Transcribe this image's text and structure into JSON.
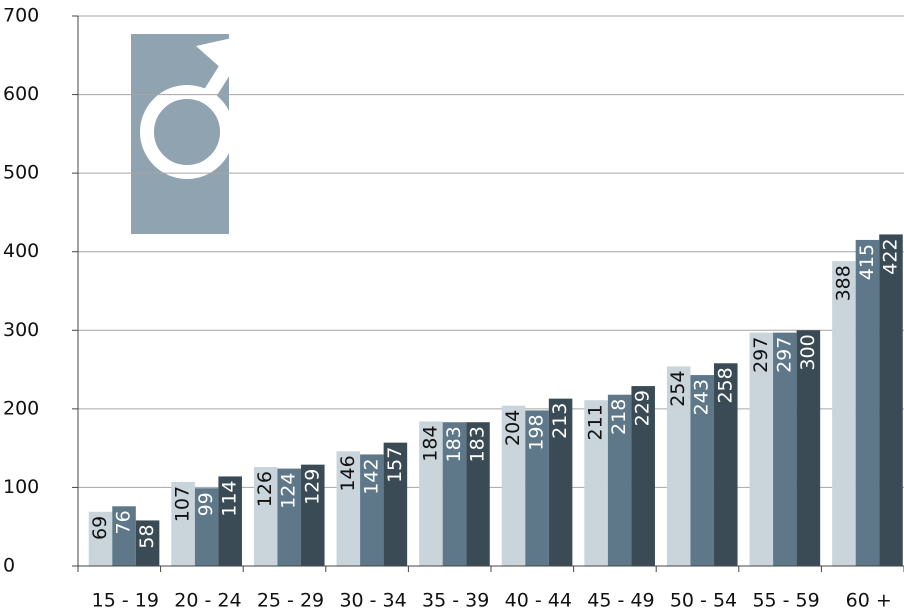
{
  "chart_data": {
    "type": "bar",
    "categories": [
      "15 - 19",
      "20 - 24",
      "25 - 29",
      "30 - 34",
      "35 - 39",
      "40 - 44",
      "45 - 49",
      "50 - 54",
      "55 - 59",
      "60 +"
    ],
    "series": [
      {
        "color": "#c9d4db",
        "label_color": "#111111",
        "values": [
          69,
          107,
          126,
          146,
          184,
          204,
          211,
          254,
          297,
          388
        ]
      },
      {
        "color": "#5e7889",
        "label_color": "#ffffff",
        "values": [
          76,
          99,
          124,
          142,
          183,
          198,
          218,
          243,
          297,
          415
        ]
      },
      {
        "color": "#3a4b56",
        "label_color": "#ffffff",
        "values": [
          58,
          114,
          129,
          157,
          183,
          213,
          229,
          258,
          300,
          422
        ]
      }
    ],
    "ylim": [
      0,
      700
    ],
    "yticks": [
      0,
      100,
      200,
      300,
      400,
      500,
      600,
      700
    ],
    "grid": true
  }
}
